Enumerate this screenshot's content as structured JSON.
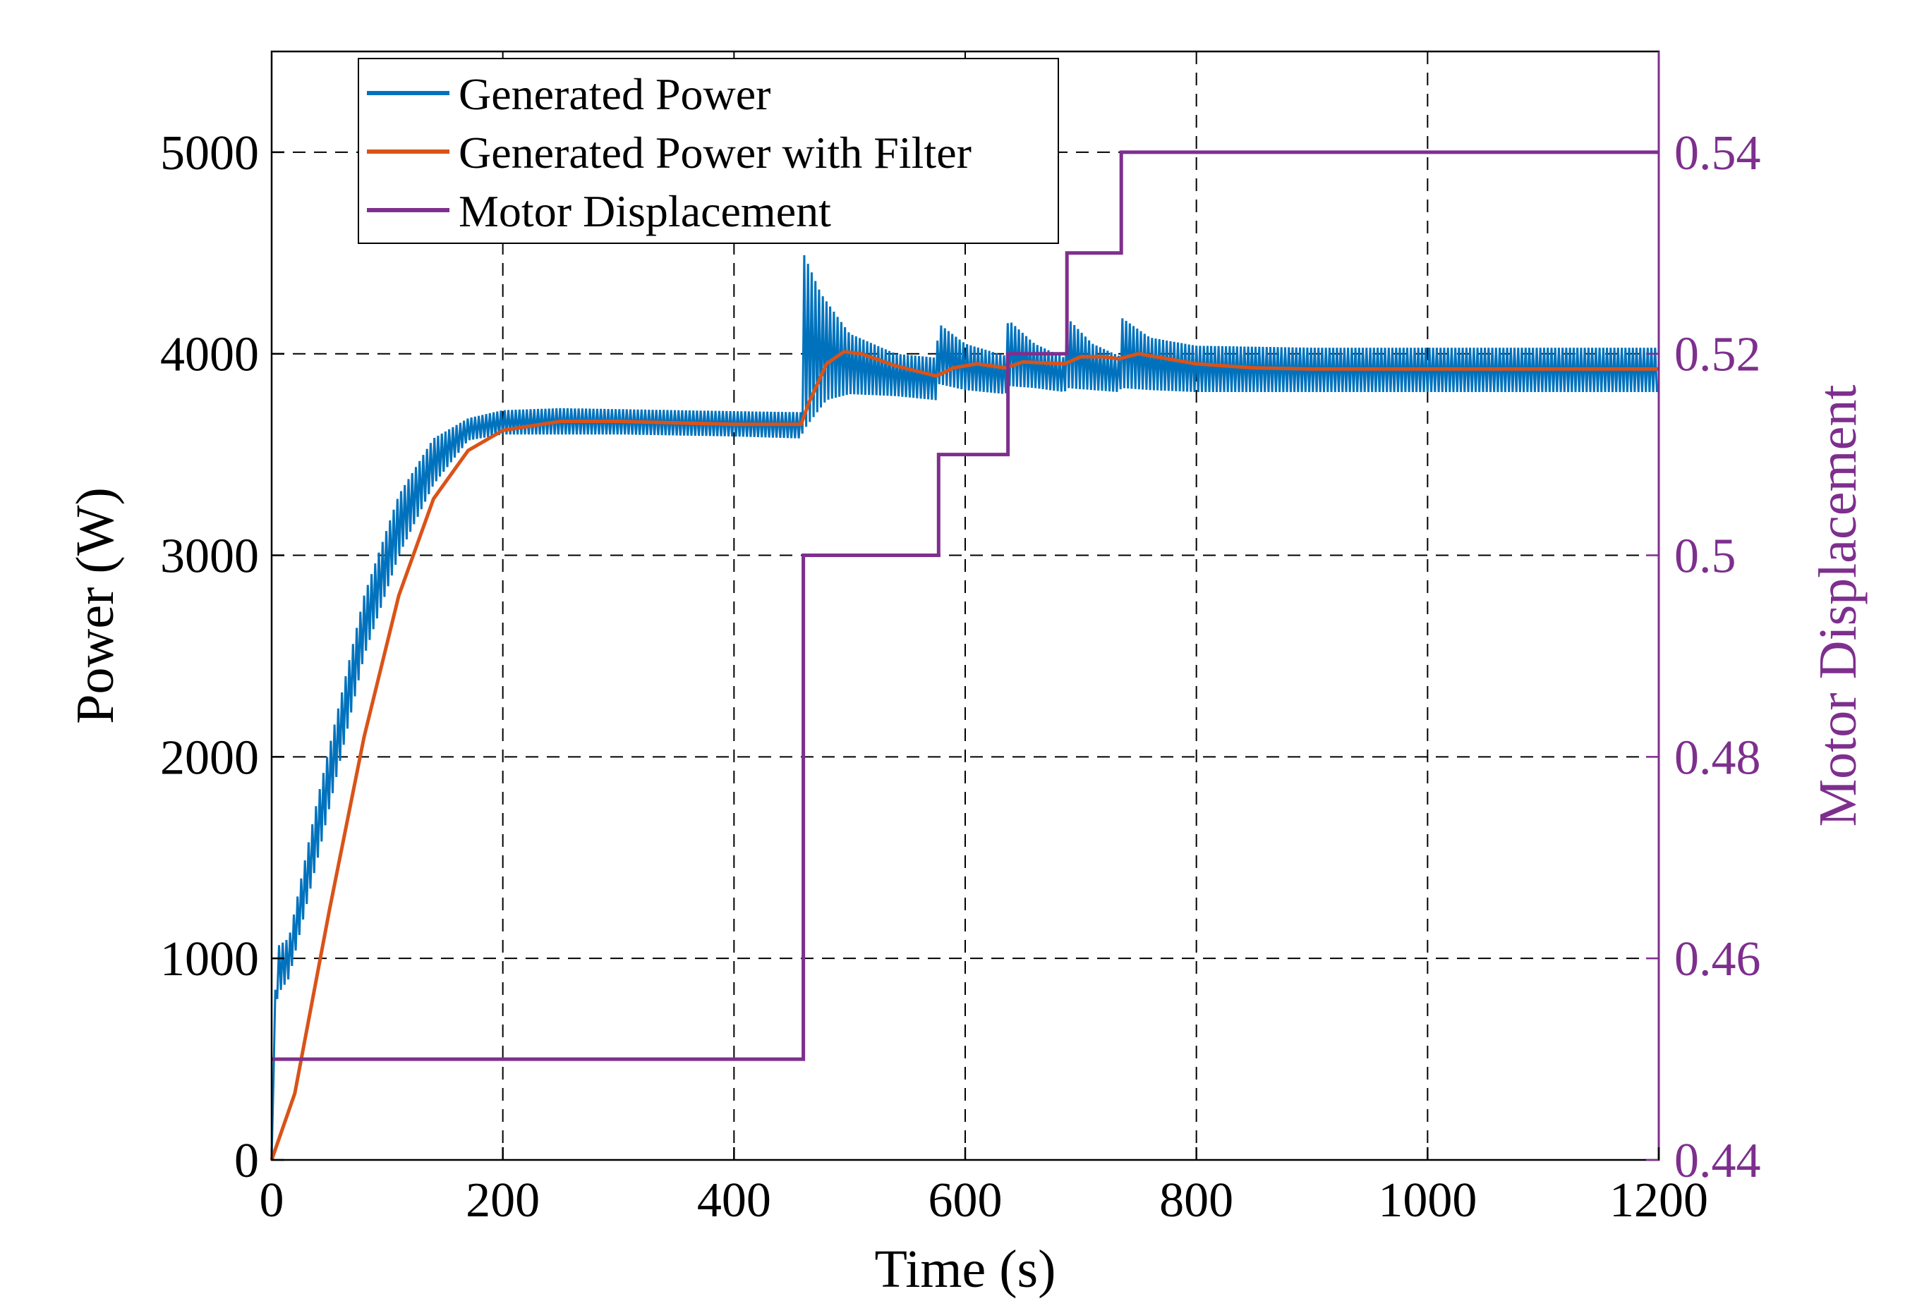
{
  "chart_data": {
    "type": "line",
    "title": "",
    "xlabel": "Time (s)",
    "ylabel_left": "Power (W)",
    "ylabel_right": "Motor Displacement",
    "xlim": [
      0,
      1200
    ],
    "ylim_left": [
      0,
      5500
    ],
    "ylim_right": [
      0.44,
      0.55
    ],
    "x_ticks": [
      "0",
      "200",
      "400",
      "600",
      "800",
      "1000",
      "1200"
    ],
    "y_left_ticks": [
      "0",
      "1000",
      "2000",
      "3000",
      "4000",
      "5000"
    ],
    "y_right_ticks": [
      "0.44",
      "0.46",
      "0.48",
      "0.5",
      "0.52",
      "0.54"
    ],
    "x_tick_values": [
      0,
      200,
      400,
      600,
      800,
      1000,
      1200
    ],
    "y_left_tick_values": [
      0,
      1000,
      2000,
      3000,
      4000,
      5000
    ],
    "y_right_tick_values": [
      0.44,
      0.46,
      0.48,
      0.5,
      0.52,
      0.54
    ],
    "grid": true,
    "legend_position": "top-left",
    "series": [
      {
        "name": "Generated Power",
        "axis": "left",
        "color": "#0072BD",
        "style": "oscillating band",
        "upper": [
          [
            0,
            0
          ],
          [
            2,
            700
          ],
          [
            5,
            1060
          ],
          [
            15,
            1100
          ],
          [
            40,
            1800
          ],
          [
            80,
            2800
          ],
          [
            110,
            3300
          ],
          [
            140,
            3580
          ],
          [
            170,
            3680
          ],
          [
            200,
            3720
          ],
          [
            250,
            3730
          ],
          [
            300,
            3725
          ],
          [
            400,
            3715
          ],
          [
            458,
            3710
          ],
          [
            460,
            4500
          ],
          [
            475,
            4300
          ],
          [
            500,
            4100
          ],
          [
            540,
            4000
          ],
          [
            575,
            3980
          ],
          [
            577,
            4150
          ],
          [
            600,
            4050
          ],
          [
            635,
            3990
          ],
          [
            637,
            4170
          ],
          [
            660,
            4050
          ],
          [
            686,
            3980
          ],
          [
            688,
            4180
          ],
          [
            710,
            4050
          ],
          [
            733,
            3990
          ],
          [
            735,
            4180
          ],
          [
            760,
            4080
          ],
          [
            800,
            4040
          ],
          [
            900,
            4030
          ],
          [
            1000,
            4030
          ],
          [
            1200,
            4030
          ]
        ],
        "lower": [
          [
            0,
            0
          ],
          [
            2,
            500
          ],
          [
            5,
            820
          ],
          [
            15,
            900
          ],
          [
            40,
            1500
          ],
          [
            80,
            2500
          ],
          [
            110,
            3000
          ],
          [
            140,
            3350
          ],
          [
            170,
            3570
          ],
          [
            200,
            3600
          ],
          [
            300,
            3600
          ],
          [
            400,
            3590
          ],
          [
            458,
            3580
          ],
          [
            460,
            3620
          ],
          [
            480,
            3770
          ],
          [
            500,
            3800
          ],
          [
            540,
            3790
          ],
          [
            575,
            3770
          ],
          [
            577,
            3850
          ],
          [
            600,
            3820
          ],
          [
            635,
            3800
          ],
          [
            637,
            3840
          ],
          [
            660,
            3830
          ],
          [
            686,
            3810
          ],
          [
            688,
            3830
          ],
          [
            710,
            3820
          ],
          [
            733,
            3810
          ],
          [
            735,
            3830
          ],
          [
            760,
            3820
          ],
          [
            800,
            3810
          ],
          [
            900,
            3810
          ],
          [
            1200,
            3810
          ]
        ]
      },
      {
        "name": "Generated Power with Filter",
        "axis": "left",
        "color": "#D95319",
        "points": [
          [
            0,
            0
          ],
          [
            20,
            330
          ],
          [
            50,
            1240
          ],
          [
            80,
            2100
          ],
          [
            110,
            2800
          ],
          [
            140,
            3280
          ],
          [
            170,
            3520
          ],
          [
            200,
            3620
          ],
          [
            250,
            3665
          ],
          [
            300,
            3665
          ],
          [
            400,
            3650
          ],
          [
            458,
            3650
          ],
          [
            465,
            3760
          ],
          [
            480,
            3950
          ],
          [
            495,
            4010
          ],
          [
            510,
            4000
          ],
          [
            540,
            3940
          ],
          [
            575,
            3890
          ],
          [
            590,
            3930
          ],
          [
            610,
            3950
          ],
          [
            635,
            3930
          ],
          [
            650,
            3960
          ],
          [
            686,
            3950
          ],
          [
            700,
            3985
          ],
          [
            720,
            3985
          ],
          [
            733,
            3975
          ],
          [
            750,
            4000
          ],
          [
            770,
            3980
          ],
          [
            800,
            3950
          ],
          [
            850,
            3930
          ],
          [
            900,
            3925
          ],
          [
            1200,
            3925
          ]
        ]
      },
      {
        "name": "Motor Displacement",
        "axis": "right",
        "color": "#7E2F8E",
        "points": [
          [
            0,
            0.45
          ],
          [
            460,
            0.45
          ],
          [
            460,
            0.5
          ],
          [
            577,
            0.5
          ],
          [
            577,
            0.51
          ],
          [
            637,
            0.51
          ],
          [
            637,
            0.52
          ],
          [
            688,
            0.52
          ],
          [
            688,
            0.53
          ],
          [
            735,
            0.53
          ],
          [
            735,
            0.54
          ],
          [
            1200,
            0.54
          ]
        ]
      }
    ]
  }
}
